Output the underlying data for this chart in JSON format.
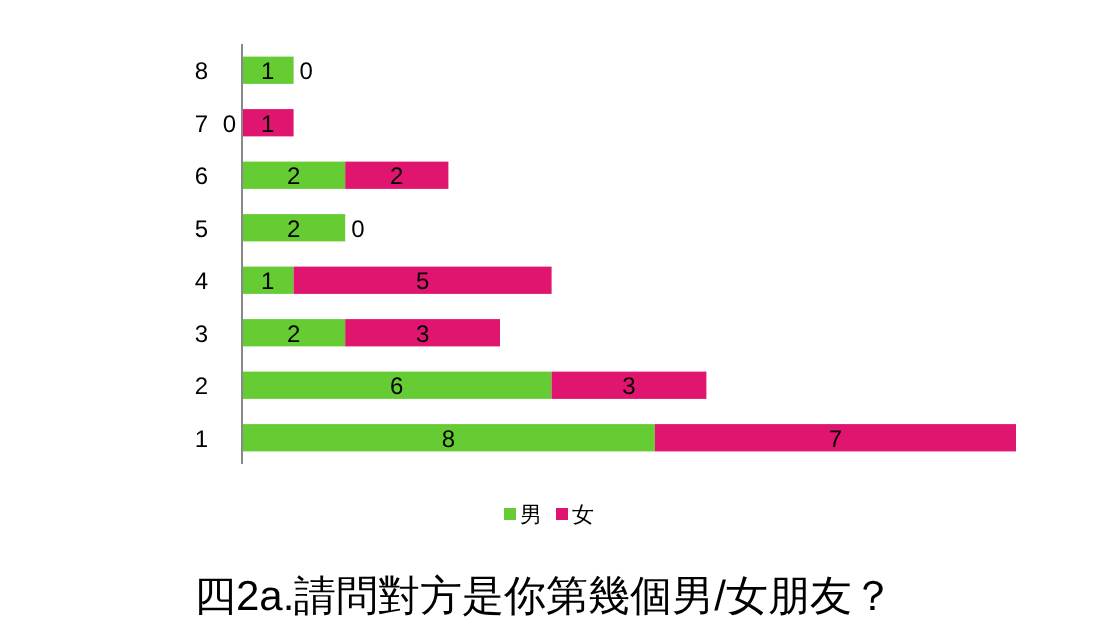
{
  "chart_data": {
    "type": "bar",
    "orientation": "horizontal",
    "stacked": true,
    "title": "四2a.請問對方是你第幾個男/女朋友？",
    "categories": [
      "8",
      "7",
      "6",
      "5",
      "4",
      "3",
      "2",
      "1"
    ],
    "series": [
      {
        "name": "男",
        "color": "#66cc33",
        "values": [
          1,
          0,
          2,
          2,
          1,
          2,
          6,
          8
        ]
      },
      {
        "name": "女",
        "color": "#e0156f",
        "values": [
          0,
          1,
          2,
          0,
          5,
          3,
          3,
          7
        ]
      }
    ],
    "data_labels": true,
    "legend": "bottom"
  }
}
